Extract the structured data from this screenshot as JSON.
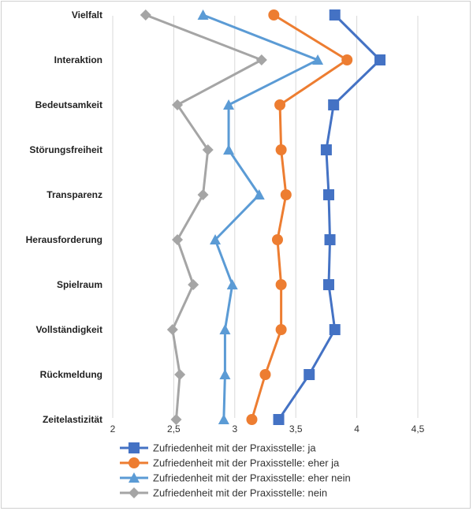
{
  "chart_data": {
    "type": "line",
    "orientation": "horizontal-value-axis",
    "title": "",
    "xlabel": "",
    "ylabel": "",
    "xlim": [
      2,
      4.5
    ],
    "x_ticks": [
      "2",
      "2,5",
      "3",
      "3,5",
      "4",
      "4,5"
    ],
    "x_tick_values": [
      2,
      2.5,
      3,
      3.5,
      4,
      4.5
    ],
    "grid": "vertical",
    "legend_position": "bottom",
    "categories": [
      "Vielfalt",
      "Interaktion",
      "Bedeutsamkeit",
      "Störungsfreiheit",
      "Transparenz",
      "Herausforderung",
      "Spielraum",
      "Vollständigkeit",
      "Rückmeldung",
      "Zeitelastizität"
    ],
    "series": [
      {
        "name": "Zufriedenheit mit der Praxisstelle: ja",
        "marker": "square",
        "color": "#4472c4",
        "values": [
          3.82,
          4.19,
          3.81,
          3.75,
          3.77,
          3.78,
          3.77,
          3.82,
          3.61,
          3.36
        ]
      },
      {
        "name": "Zufriedenheit mit der Praxisstelle: eher ja",
        "marker": "circle",
        "color": "#ed7d31",
        "values": [
          3.32,
          3.92,
          3.37,
          3.38,
          3.42,
          3.35,
          3.38,
          3.38,
          3.25,
          3.14
        ]
      },
      {
        "name": "Zufriedenheit mit der Praxisstelle: eher nein",
        "marker": "triangle",
        "color": "#5b9bd5",
        "values": [
          2.74,
          3.68,
          2.95,
          2.95,
          3.2,
          2.84,
          2.98,
          2.92,
          2.92,
          2.91
        ]
      },
      {
        "name": "Zufriedenheit mit der Praxisstelle:  nein",
        "marker": "diamond",
        "color": "#a5a5a5",
        "values": [
          2.27,
          3.22,
          2.53,
          2.78,
          2.74,
          2.53,
          2.66,
          2.49,
          2.55,
          2.52
        ]
      }
    ]
  }
}
